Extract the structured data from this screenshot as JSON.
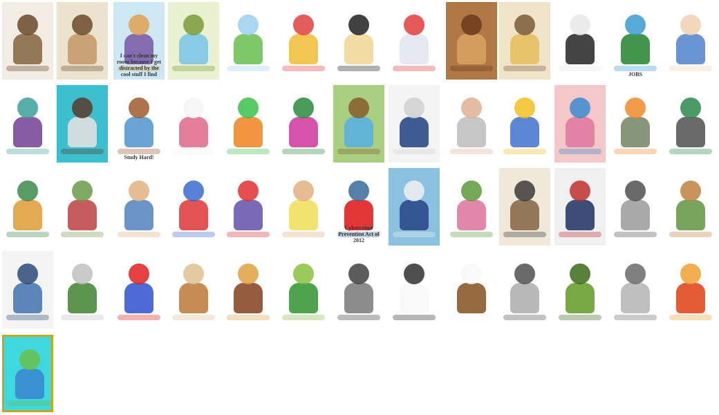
{
  "gallery": {
    "rows": [
      {
        "tiles": [
          {
            "icon": "old-farmer-cartoon",
            "bg": "#f1ece4",
            "c1": "#8b6b45",
            "c2": "#6b4a2a",
            "cap": ""
          },
          {
            "icon": "bearded-elder-cartoon",
            "bg": "#ece3cf",
            "c1": "#c59a6b",
            "c2": "#6b4a2a",
            "cap": ""
          },
          {
            "icon": "messy-room-comic",
            "bg": "#cde8f2",
            "c1": "#7b5ea7",
            "c2": "#e0a050",
            "cap": "I can't clean my room because I get distracted by the cool stuff I find"
          },
          {
            "icon": "woman-vacuuming-cartoon",
            "bg": "#e9f1d0",
            "c1": "#7cc6e6",
            "c2": "#7a9a3a",
            "cap": ""
          },
          {
            "icon": "two-girls-cartoon",
            "bg": "#ffffff",
            "c1": "#6fc35a",
            "c2": "#9ad0f0",
            "cap": ""
          },
          {
            "icon": "kids-fighting-cartoon",
            "bg": "#ffffff",
            "c1": "#f0c040",
            "c2": "#e04040",
            "cap": ""
          },
          {
            "icon": "praying-child-cartoon",
            "bg": "#ffffff",
            "c1": "#f2d89a",
            "c2": "#202020",
            "cap": ""
          },
          {
            "icon": "ghost-scare-cartoon",
            "bg": "#ffffff",
            "c1": "#e6e6f2",
            "c2": "#e03c3c",
            "cap": ""
          },
          {
            "icon": "crowd-illustration",
            "bg": "#b07845",
            "c1": "#d8a060",
            "c2": "#6a3a1a",
            "cap": ""
          },
          {
            "icon": "kitchen-comic",
            "bg": "#f0e4c8",
            "c1": "#e6c060",
            "c2": "#7a5a3a",
            "cap": ""
          },
          {
            "icon": "burglar-cartoon",
            "bg": "#ffffff",
            "c1": "#303030",
            "c2": "#e8e8e8",
            "cap": ""
          },
          {
            "icon": "jobs-board-cartoon",
            "bg": "#ffffff",
            "c1": "#2f8a3a",
            "c2": "#3a9ad0",
            "cap": "JOBS"
          },
          {
            "icon": "grandma-scolding-cartoon",
            "bg": "#ffffff",
            "c1": "#5a8ad0",
            "c2": "#f0d0b0",
            "cap": ""
          }
        ]
      },
      {
        "tiles": [
          {
            "icon": "mother-reading-cartoon",
            "bg": "#ffffff",
            "c1": "#7a4a9a",
            "c2": "#3aa09a",
            "cap": ""
          },
          {
            "icon": "students-writing-cartoon",
            "bg": "#3cc0d0",
            "c1": "#e0e0e0",
            "c2": "#5a3a2a",
            "cap": ""
          },
          {
            "icon": "study-hard-cartoon",
            "bg": "#ffffff",
            "c1": "#5a9ad0",
            "c2": "#a05a2a",
            "cap": "Study Hard!"
          },
          {
            "icon": "girl-with-vet-cartoon",
            "bg": "#ffffff",
            "c1": "#e07090",
            "c2": "#f4f4f4",
            "cap": ""
          },
          {
            "icon": "green-eyed-cat-cartoon",
            "bg": "#ffffff",
            "c1": "#f08a2a",
            "c2": "#3ac04a",
            "cap": ""
          },
          {
            "icon": "girl-watering-flowers",
            "bg": "#ffffff",
            "c1": "#d040a0",
            "c2": "#2a8a3a",
            "cap": ""
          },
          {
            "icon": "lumberjack-cartoon",
            "bg": "#a8d080",
            "c1": "#5ab0e0",
            "c2": "#8a5a2a",
            "cap": ""
          },
          {
            "icon": "election-comic",
            "bg": "#f4f4f4",
            "c1": "#2a4a8a",
            "c2": "#d0d0d0",
            "cap": ""
          },
          {
            "icon": "doctor-exam-cartoon",
            "bg": "#ffffff",
            "c1": "#c0c0c0",
            "c2": "#e0b090",
            "cap": ""
          },
          {
            "icon": "sleeping-baby-cartoon",
            "bg": "#ffffff",
            "c1": "#4a7ad0",
            "c2": "#f0c020",
            "cap": ""
          },
          {
            "icon": "grandma-hug-cartoon",
            "bg": "#f4c8c8",
            "c1": "#e07aa0",
            "c2": "#3a8ad0",
            "cap": ""
          },
          {
            "icon": "recycling-bins-cartoon",
            "bg": "#ffffff",
            "c1": "#7a8a6a",
            "c2": "#f08a2a",
            "cap": ""
          },
          {
            "icon": "garbage-can-cartoon",
            "bg": "#ffffff",
            "c1": "#5a5a5a",
            "c2": "#2a8a4a",
            "cap": ""
          }
        ]
      },
      {
        "tiles": [
          {
            "icon": "door-visitor-cartoon",
            "bg": "#ffffff",
            "c1": "#e0a040",
            "c2": "#3a8a4a",
            "cap": ""
          },
          {
            "icon": "neighborhood-comic",
            "bg": "#ffffff",
            "c1": "#c04a4a",
            "c2": "#6a9a4a",
            "cap": ""
          },
          {
            "icon": "two-men-cartoon",
            "bg": "#ffffff",
            "c1": "#5a8ac0",
            "c2": "#e0b080",
            "cap": ""
          },
          {
            "icon": "kids-play-cartoon",
            "bg": "#ffffff",
            "c1": "#e04040",
            "c2": "#3a6ad0",
            "cap": ""
          },
          {
            "icon": "woman-no-sound-cartoon",
            "bg": "#ffffff",
            "c1": "#6a5ab0",
            "c2": "#e03030",
            "cap": ""
          },
          {
            "icon": "pregnant-couple-comic",
            "bg": "#ffffff",
            "c1": "#f0e060",
            "c2": "#e0b080",
            "cap": ""
          },
          {
            "icon": "cybercrime-poster",
            "bg": "#ffffff",
            "c1": "#e02020",
            "c2": "#3a6a9a",
            "cap": "Cybercrime Prevention Act of 2012"
          },
          {
            "icon": "political-comic",
            "bg": "#8ac0e0",
            "c1": "#2a4a8a",
            "c2": "#f0f0f0",
            "cap": ""
          },
          {
            "icon": "mother-child-cartoon",
            "bg": "#ffffff",
            "c1": "#e07aa0",
            "c2": "#5a9a3a",
            "cap": ""
          },
          {
            "icon": "gun-shop-comic",
            "bg": "#f0e8d8",
            "c1": "#8a6a4a",
            "c2": "#3a3a3a",
            "cap": ""
          },
          {
            "icon": "shopping-cart-comic",
            "bg": "#f0f0f0",
            "c1": "#2a3a6a",
            "c2": "#c03030",
            "cap": ""
          },
          {
            "icon": "rhino-cartoon",
            "bg": "#ffffff",
            "c1": "#a0a0a0",
            "c2": "#505050",
            "cap": ""
          },
          {
            "icon": "street-scene-comic",
            "bg": "#ffffff",
            "c1": "#6a9a4a",
            "c2": "#c08040",
            "cap": ""
          }
        ]
      },
      {
        "tiles": [
          {
            "icon": "blue-fish-cartoon",
            "bg": "#f4f4f4",
            "c1": "#4a7ab0",
            "c2": "#2a4a7a",
            "cap": ""
          },
          {
            "icon": "businessmen-cartoon",
            "bg": "#ffffff",
            "c1": "#4a8a3a",
            "c2": "#c0c0c0",
            "cap": ""
          },
          {
            "icon": "computer-user-cartoon",
            "bg": "#ffffff",
            "c1": "#3a5ad0",
            "c2": "#e02020",
            "cap": ""
          },
          {
            "icon": "monkey-cartoon",
            "bg": "#ffffff",
            "c1": "#c08040",
            "c2": "#e0c090",
            "cap": ""
          },
          {
            "icon": "turkey-cartoon",
            "bg": "#ffffff",
            "c1": "#8a4a2a",
            "c2": "#e0a040",
            "cap": ""
          },
          {
            "icon": "turtle-cartoon",
            "bg": "#ffffff",
            "c1": "#3a9a3a",
            "c2": "#8ac040",
            "cap": ""
          },
          {
            "icon": "wolf-cartoon",
            "bg": "#ffffff",
            "c1": "#808080",
            "c2": "#404040",
            "cap": ""
          },
          {
            "icon": "cow-cartoon",
            "bg": "#ffffff",
            "c1": "#f8f8f8",
            "c2": "#303030",
            "cap": ""
          },
          {
            "icon": "sailor-monkey-cartoon",
            "bg": "#ffffff",
            "c1": "#8a5a2a",
            "c2": "#f8f8f8",
            "cap": ""
          },
          {
            "icon": "mouse-cartoon",
            "bg": "#ffffff",
            "c1": "#b0b0b0",
            "c2": "#505050",
            "cap": ""
          },
          {
            "icon": "dinosaur-cartoon",
            "bg": "#ffffff",
            "c1": "#6aa030",
            "c2": "#3a6a1a",
            "cap": ""
          },
          {
            "icon": "goat-cartoon",
            "bg": "#ffffff",
            "c1": "#b8b8b8",
            "c2": "#6a6a6a",
            "cap": ""
          },
          {
            "icon": "chicken-cartoon",
            "bg": "#ffffff",
            "c1": "#e04a20",
            "c2": "#f0a030",
            "cap": ""
          }
        ]
      },
      {
        "tiles": [
          {
            "icon": "globe-children-poster",
            "bg": "#40d8e0",
            "c1": "#3a8ad0",
            "c2": "#6ac04a",
            "cap": ""
          }
        ]
      }
    ]
  }
}
